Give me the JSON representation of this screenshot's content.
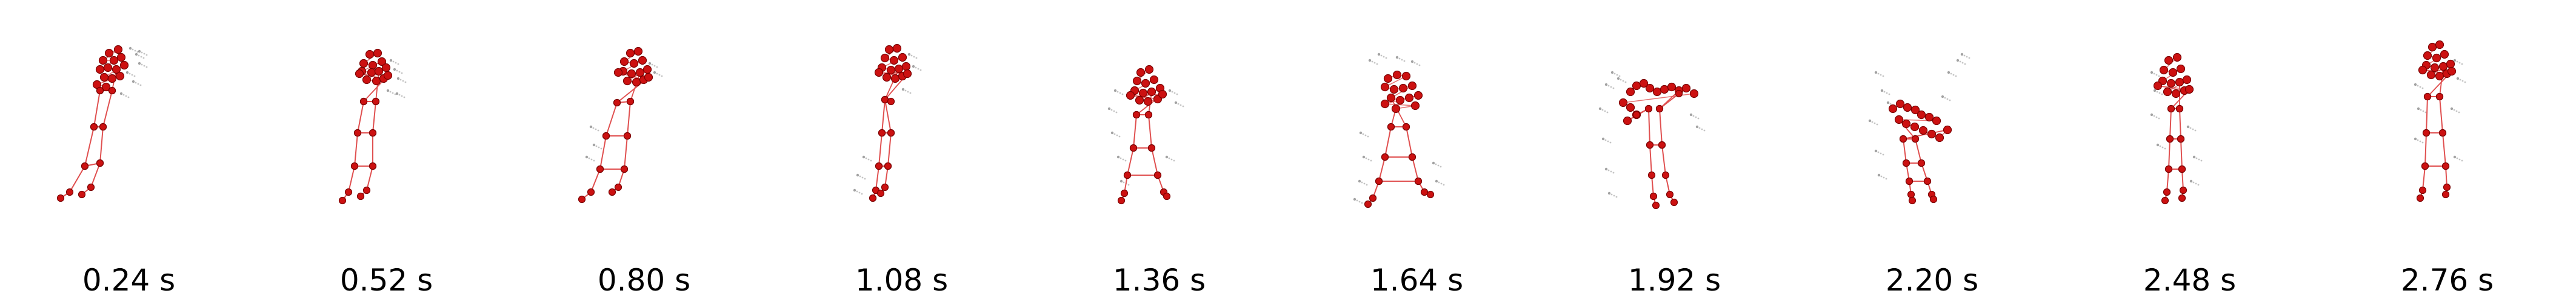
{
  "frames": [
    {
      "label": "0.24 s"
    },
    {
      "label": "0.52 s"
    },
    {
      "label": "0.80 s"
    },
    {
      "label": "1.08 s"
    },
    {
      "label": "1.36 s"
    },
    {
      "label": "1.64 s"
    },
    {
      "label": "1.92 s"
    },
    {
      "label": "2.20 s"
    },
    {
      "label": "2.48 s"
    },
    {
      "label": "2.76 s"
    }
  ],
  "colors": {
    "joint": "#cc1111",
    "joint_edge": "#7a0000",
    "bone": "#e05050",
    "scatter": "#555555",
    "text": "#000000"
  }
}
